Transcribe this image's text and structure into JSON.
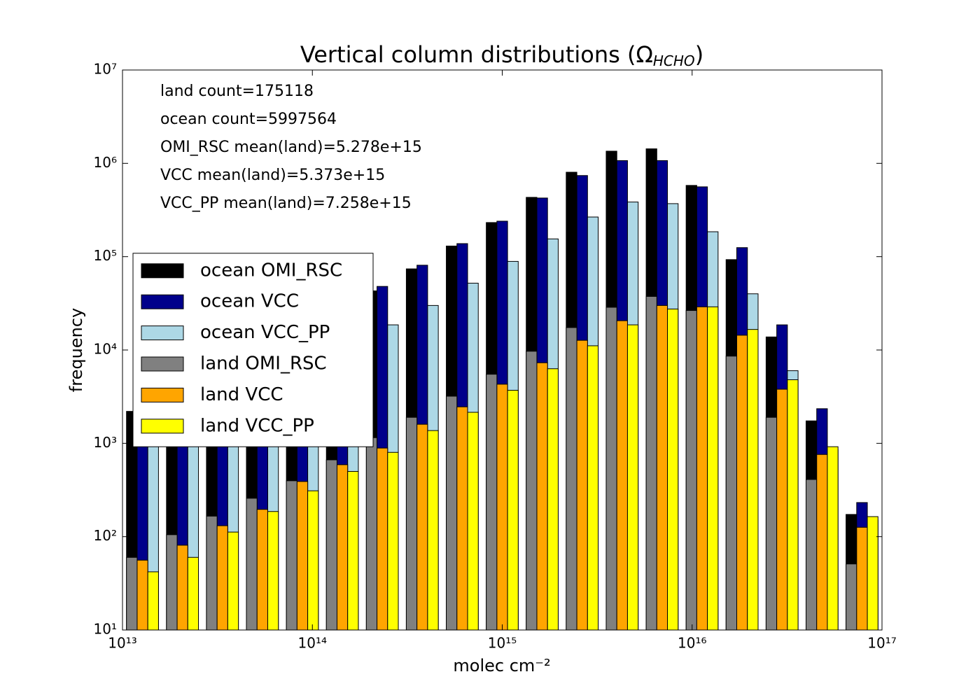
{
  "chart_data": {
    "type": "histogram",
    "title": "Vertical column distributions (Ω_HCHO)",
    "x_label": "molec cm⁻²",
    "y_label": "frequency",
    "xscale": "log",
    "yscale": "log",
    "xlim": [
      10000000000000.0,
      1e+17
    ],
    "ylim": [
      10,
      10000000
    ],
    "xticks": [
      {
        "value": 10000000000000.0,
        "label": "10¹³"
      },
      {
        "value": 100000000000000.0,
        "label": "10¹⁴"
      },
      {
        "value": 1000000000000000.0,
        "label": "10¹⁵"
      },
      {
        "value": 1e+16,
        "label": "10¹⁶"
      },
      {
        "value": 1e+17,
        "label": "10¹⁷"
      }
    ],
    "yticks": [
      {
        "value": 10,
        "label": "10¹"
      },
      {
        "value": 100,
        "label": "10²"
      },
      {
        "value": 1000,
        "label": "10³"
      },
      {
        "value": 10000,
        "label": "10⁴"
      },
      {
        "value": 100000,
        "label": "10⁵"
      },
      {
        "value": 1000000,
        "label": "10⁶"
      },
      {
        "value": 10000000,
        "label": "10⁷"
      }
    ],
    "annotations": [
      "land count=175118",
      "ocean count=5997564",
      "OMI_RSC mean(land)=5.278e+15",
      "VCC mean(land)=5.373e+15",
      "VCC_PP mean(land)=7.258e+15"
    ],
    "legend": "center left",
    "bins": [
      10000000000000.0,
      16240000000000.0,
      26370000000000.0,
      42810000000000.0,
      69520000000000.0,
      112900000000000.0,
      183300000000000.0,
      297600000000000.0,
      483300000000000.0,
      784800000000000.0,
      1274000000000000.0,
      2069000000000000.0,
      3360000000000000.0,
      5456000000000000.0,
      8859000000000000.0,
      1.438e+16,
      2.336e+16,
      3.793e+16,
      6.158e+16,
      1e+17
    ],
    "series": [
      {
        "name": "ocean OMI_RSC",
        "color": "#000000",
        "values": [
          2200,
          2600,
          4000,
          6000,
          10000,
          25000,
          43000,
          74000,
          130000,
          232000,
          432000,
          803000,
          1350000,
          1430000,
          580000,
          93000,
          13800,
          1740,
          173
        ]
      },
      {
        "name": "ocean VCC",
        "color": "#00008b",
        "values": [
          2600,
          3000,
          5000,
          8000,
          14000,
          28000,
          48000,
          81000,
          138000,
          240000,
          425000,
          740000,
          1070000,
          1070000,
          560000,
          125000,
          18600,
          2350,
          232
        ]
      },
      {
        "name": "ocean VCC_PP",
        "color": "#add8e6",
        "values": [
          1500,
          1800,
          2800,
          4500,
          7000,
          12000,
          18600,
          30000,
          52000,
          89000,
          155000,
          266000,
          385000,
          370000,
          185000,
          40000,
          6000,
          850,
          150
        ]
      },
      {
        "name": "land OMI_RSC",
        "color": "#808080",
        "values": [
          60,
          105,
          166,
          258,
          397,
          665,
          1150,
          1900,
          3200,
          5500,
          9700,
          17400,
          28700,
          37500,
          26500,
          8600,
          1900,
          410,
          51
        ]
      },
      {
        "name": "land VCC",
        "color": "#ffa500",
        "values": [
          56,
          81,
          131,
          196,
          390,
          590,
          890,
          1600,
          2460,
          4300,
          7300,
          12700,
          20600,
          30000,
          29000,
          14400,
          3800,
          760,
          126
        ]
      },
      {
        "name": "land VCC_PP",
        "color": "#ffff00",
        "values": [
          42,
          60,
          112,
          186,
          310,
          500,
          800,
          1370,
          2150,
          3700,
          6300,
          11100,
          18600,
          27500,
          29000,
          16600,
          4800,
          920,
          164
        ]
      }
    ]
  }
}
